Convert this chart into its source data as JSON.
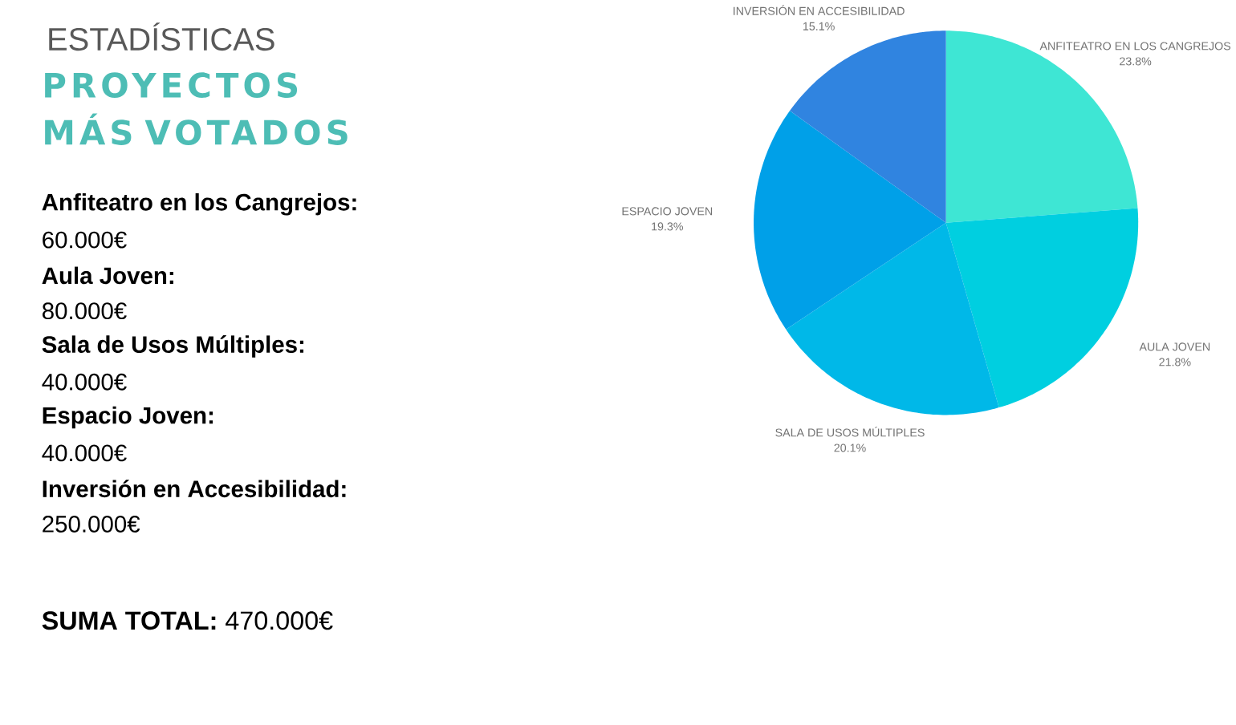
{
  "chart_data": {
    "type": "pie",
    "title": "ESTADÍSTICAS",
    "subtitle": "PROYECTOS MÁS VOTADOS",
    "categories": [
      "ANFITEATRO EN LOS CANGREJOS",
      "AULA JOVEN",
      "SALA DE USOS MÚLTIPLES",
      "ESPACIO JOVEN",
      "INVERSIÓN EN ACCESIBILIDAD"
    ],
    "values": [
      23.8,
      21.8,
      20.1,
      19.3,
      15.1
    ],
    "value_labels": [
      "23.8%",
      "21.8%",
      "20.1%",
      "19.3%",
      "15.1%"
    ],
    "colors": [
      "#3ee6d4",
      "#00cfe0",
      "#00b8e8",
      "#00a0e8",
      "#3084e0"
    ],
    "annotations": [
      "Anfiteatro en los Cangrejos:",
      "60.000€",
      "Aula Joven:",
      "80.000€",
      "Sala de Usos Múltiples:",
      "40.000€",
      "Espacio Joven:",
      "40.000€",
      "Inversión en Accesibilidad:",
      "250.000€",
      "**SUMA TOTAL:** 470.000€"
    ]
  }
}
